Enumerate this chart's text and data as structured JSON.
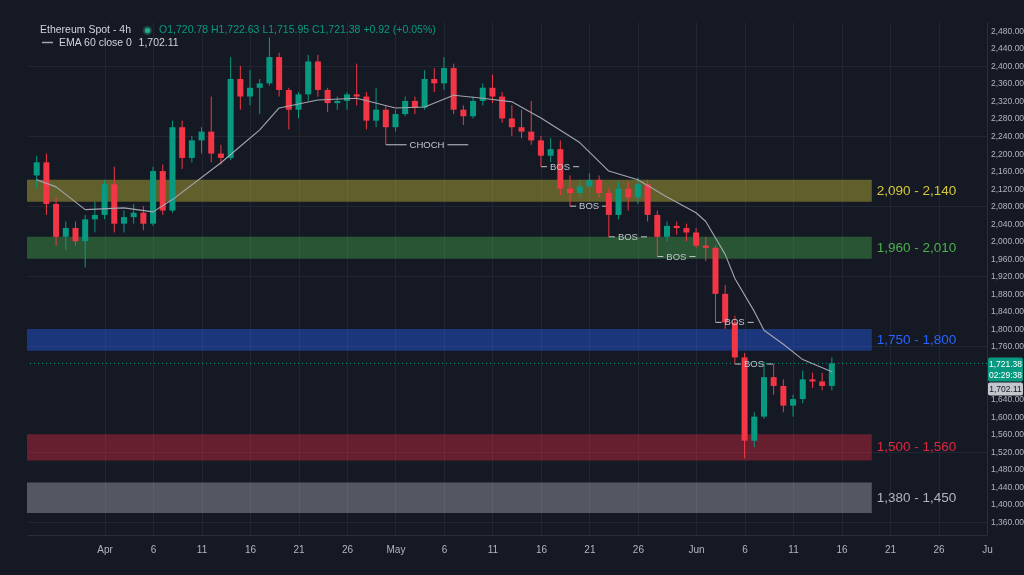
{
  "chart_data": {
    "type": "candlestick",
    "title": "Ethereum Spot - 4h",
    "x": [
      "--03-25",
      "--03-26",
      "--03-27",
      "--03-28",
      "--03-29",
      "--03-30",
      "--03-31",
      "--04-01",
      "--04-02",
      "--04-03",
      "--04-04",
      "--04-05",
      "--04-06",
      "--04-07",
      "--04-08",
      "--04-09",
      "--04-10",
      "--04-11",
      "--04-12",
      "--04-13",
      "--04-14",
      "--04-15",
      "--04-16",
      "--04-17",
      "--04-18",
      "--04-19",
      "--04-20",
      "--04-21",
      "--04-22",
      "--04-23",
      "--04-24",
      "--04-25",
      "--04-26",
      "--04-27",
      "--04-28",
      "--04-29",
      "--04-30",
      "--05-01",
      "--05-02",
      "--05-03",
      "--05-04",
      "--05-05",
      "--05-06",
      "--05-07",
      "--05-08",
      "--05-09",
      "--05-10",
      "--05-11",
      "--05-12",
      "--05-13",
      "--05-14",
      "--05-15",
      "--05-16",
      "--05-17",
      "--05-18",
      "--05-19",
      "--05-20",
      "--05-21",
      "--05-22",
      "--05-23",
      "--05-24",
      "--05-25",
      "--05-26",
      "--05-27",
      "--05-28",
      "--05-29",
      "--05-30",
      "--05-31",
      "--06-01",
      "--06-02",
      "--06-03",
      "--06-04",
      "--06-05",
      "--06-06",
      "--06-07",
      "--06-08",
      "--06-09",
      "--06-10",
      "--06-11",
      "--06-12",
      "--06-13",
      "--06-14",
      "--06-15"
    ],
    "ohlc": [
      [
        2150,
        2195,
        2120,
        2180
      ],
      [
        2180,
        2200,
        2060,
        2085
      ],
      [
        2085,
        2100,
        1990,
        2010
      ],
      [
        2010,
        2045,
        1980,
        2030
      ],
      [
        2030,
        2045,
        1990,
        2000
      ],
      [
        2000,
        2060,
        1940,
        2050
      ],
      [
        2050,
        2090,
        2020,
        2060
      ],
      [
        2060,
        2140,
        2050,
        2130
      ],
      [
        2130,
        2170,
        2020,
        2040
      ],
      [
        2040,
        2070,
        2020,
        2055
      ],
      [
        2055,
        2085,
        2040,
        2065
      ],
      [
        2065,
        2080,
        2025,
        2040
      ],
      [
        2040,
        2170,
        2035,
        2160
      ],
      [
        2160,
        2175,
        2060,
        2070
      ],
      [
        2070,
        2275,
        2065,
        2260
      ],
      [
        2260,
        2275,
        2165,
        2190
      ],
      [
        2190,
        2240,
        2180,
        2230
      ],
      [
        2230,
        2260,
        2200,
        2250
      ],
      [
        2250,
        2330,
        2180,
        2200
      ],
      [
        2200,
        2220,
        2175,
        2190
      ],
      [
        2190,
        2420,
        2185,
        2370
      ],
      [
        2370,
        2400,
        2300,
        2330
      ],
      [
        2330,
        2390,
        2310,
        2350
      ],
      [
        2350,
        2370,
        2290,
        2360
      ],
      [
        2360,
        2465,
        2355,
        2420
      ],
      [
        2420,
        2430,
        2330,
        2345
      ],
      [
        2345,
        2350,
        2255,
        2300
      ],
      [
        2300,
        2340,
        2280,
        2335
      ],
      [
        2335,
        2425,
        2320,
        2410
      ],
      [
        2410,
        2425,
        2330,
        2345
      ],
      [
        2345,
        2350,
        2295,
        2315
      ],
      [
        2315,
        2330,
        2300,
        2320
      ],
      [
        2320,
        2340,
        2300,
        2335
      ],
      [
        2335,
        2405,
        2310,
        2330
      ],
      [
        2330,
        2340,
        2255,
        2275
      ],
      [
        2275,
        2350,
        2260,
        2300
      ],
      [
        2300,
        2310,
        2220,
        2260
      ],
      [
        2260,
        2300,
        2250,
        2290
      ],
      [
        2290,
        2330,
        2285,
        2320
      ],
      [
        2320,
        2330,
        2290,
        2305
      ],
      [
        2305,
        2390,
        2300,
        2370
      ],
      [
        2370,
        2395,
        2340,
        2360
      ],
      [
        2360,
        2420,
        2345,
        2395
      ],
      [
        2395,
        2405,
        2290,
        2300
      ],
      [
        2300,
        2310,
        2265,
        2285
      ],
      [
        2285,
        2330,
        2280,
        2320
      ],
      [
        2320,
        2360,
        2310,
        2350
      ],
      [
        2350,
        2380,
        2315,
        2330
      ],
      [
        2330,
        2340,
        2270,
        2280
      ],
      [
        2280,
        2310,
        2240,
        2260
      ],
      [
        2260,
        2300,
        2235,
        2250
      ],
      [
        2250,
        2320,
        2220,
        2230
      ],
      [
        2230,
        2240,
        2170,
        2195
      ],
      [
        2195,
        2235,
        2180,
        2210
      ],
      [
        2210,
        2230,
        2105,
        2120
      ],
      [
        2120,
        2150,
        2080,
        2110
      ],
      [
        2110,
        2140,
        2100,
        2125
      ],
      [
        2125,
        2155,
        2110,
        2140
      ],
      [
        2140,
        2150,
        2100,
        2110
      ],
      [
        2110,
        2120,
        2010,
        2060
      ],
      [
        2060,
        2135,
        2050,
        2120
      ],
      [
        2120,
        2135,
        2070,
        2100
      ],
      [
        2100,
        2145,
        2085,
        2130
      ],
      [
        2130,
        2140,
        2045,
        2060
      ],
      [
        2060,
        2070,
        1965,
        2010
      ],
      [
        2010,
        2045,
        2000,
        2035
      ],
      [
        2035,
        2045,
        2015,
        2030
      ],
      [
        2030,
        2040,
        2000,
        2020
      ],
      [
        2020,
        2030,
        1985,
        1990
      ],
      [
        1990,
        2010,
        1955,
        1985
      ],
      [
        1985,
        1990,
        1815,
        1880
      ],
      [
        1880,
        1900,
        1800,
        1815
      ],
      [
        1815,
        1830,
        1720,
        1735
      ],
      [
        1735,
        1745,
        1505,
        1545
      ],
      [
        1545,
        1610,
        1530,
        1600
      ],
      [
        1600,
        1725,
        1595,
        1690
      ],
      [
        1690,
        1720,
        1650,
        1670
      ],
      [
        1670,
        1685,
        1610,
        1625
      ],
      [
        1625,
        1650,
        1600,
        1640
      ],
      [
        1640,
        1705,
        1630,
        1685
      ],
      [
        1685,
        1700,
        1665,
        1680
      ],
      [
        1680,
        1700,
        1660,
        1670
      ],
      [
        1670,
        1735,
        1660,
        1721.38
      ]
    ],
    "colors": [
      "#089981",
      "#f23645",
      "#f23645",
      "#089981",
      "#f23645",
      "#089981",
      "#089981",
      "#089981",
      "#f23645",
      "#089981",
      "#089981",
      "#f23645",
      "#089981",
      "#f23645",
      "#089981",
      "#f23645",
      "#089981",
      "#089981",
      "#f23645",
      "#f23645",
      "#089981",
      "#f23645",
      "#089981",
      "#089981",
      "#089981",
      "#f23645",
      "#f23645",
      "#089981",
      "#089981",
      "#f23645",
      "#f23645",
      "#089981",
      "#089981",
      "#f23645",
      "#f23645",
      "#089981",
      "#f23645",
      "#089981",
      "#089981",
      "#f23645",
      "#089981",
      "#f23645",
      "#089981",
      "#f23645",
      "#f23645",
      "#089981",
      "#089981",
      "#f23645",
      "#f23645",
      "#f23645",
      "#f23645",
      "#f23645",
      "#f23645",
      "#089981",
      "#f23645",
      "#f23645",
      "#089981",
      "#089981",
      "#f23645",
      "#f23645",
      "#089981",
      "#f23645",
      "#089981",
      "#f23645",
      "#f23645",
      "#089981",
      "#f23645",
      "#f23645",
      "#f23645",
      "#f23645",
      "#f23645",
      "#f23645",
      "#f23645",
      "#f23645",
      "#089981",
      "#089981",
      "#f23645",
      "#f23645",
      "#089981",
      "#089981",
      "#f23645",
      "#f23645",
      "#089981"
    ],
    "series": [
      {
        "name": "EMA 60 close 0",
        "type": "line",
        "color": "#a3a6af",
        "x": [
          "--03-25",
          "--03-27",
          "--03-30",
          "--04-03",
          "--04-06",
          "--04-08",
          "--04-13",
          "--04-17",
          "--04-19",
          "--04-23",
          "--04-27",
          "--05-01",
          "--05-04",
          "--05-07",
          "--05-10",
          "--05-13",
          "--05-16",
          "--05-20",
          "--05-23",
          "--05-26",
          "--05-29",
          "--06-01",
          "--06-02",
          "--06-04",
          "--06-05",
          "--06-07",
          "--06-08",
          "--06-10",
          "--06-12",
          "--06-15"
        ],
        "values": [
          2140,
          2124,
          2072,
          2076,
          2067,
          2095,
          2179,
          2254,
          2304,
          2322,
          2326,
          2304,
          2306,
          2333,
          2326,
          2318,
          2281,
          2225,
          2160,
          2140,
          2101,
          2065,
          2045,
          1970,
          1915,
          1840,
          1797,
          1765,
          1730,
          1702.11
        ]
      }
    ],
    "xlim": [
      "--03-24",
      "--07-01"
    ],
    "xticks": [
      {
        "value": "--04-01",
        "label": "Apr"
      },
      {
        "value": "--04-06",
        "label": "6"
      },
      {
        "value": "--04-11",
        "label": "11"
      },
      {
        "value": "--04-16",
        "label": "16"
      },
      {
        "value": "--04-21",
        "label": "21"
      },
      {
        "value": "--04-26",
        "label": "26"
      },
      {
        "value": "--05-01",
        "label": "May"
      },
      {
        "value": "--05-06",
        "label": "6"
      },
      {
        "value": "--05-11",
        "label": "11"
      },
      {
        "value": "--05-16",
        "label": "16"
      },
      {
        "value": "--05-21",
        "label": "21"
      },
      {
        "value": "--05-26",
        "label": "26"
      },
      {
        "value": "--06-01",
        "label": "Jun"
      },
      {
        "value": "--06-06",
        "label": "6"
      },
      {
        "value": "--06-11",
        "label": "11"
      },
      {
        "value": "--06-16",
        "label": "16"
      },
      {
        "value": "--06-21",
        "label": "21"
      },
      {
        "value": "--06-26",
        "label": "26"
      },
      {
        "value": "--07-01",
        "label": "Ju"
      }
    ],
    "ylim": [
      1330,
      2500
    ],
    "yticks": [
      {
        "value": 1360,
        "label": "1,360.00"
      },
      {
        "value": 1400,
        "label": "1,400.00"
      },
      {
        "value": 1440,
        "label": "1,440.00"
      },
      {
        "value": 1480,
        "label": "1,480.00"
      },
      {
        "value": 1520,
        "label": "1,520.00"
      },
      {
        "value": 1560,
        "label": "1,560.00"
      },
      {
        "value": 1600,
        "label": "1,600.00"
      },
      {
        "value": 1640,
        "label": "1,640.00"
      },
      {
        "value": 1760,
        "label": "1,760.00"
      },
      {
        "value": 1800,
        "label": "1,800.00"
      },
      {
        "value": 1840,
        "label": "1,840.00"
      },
      {
        "value": 1880,
        "label": "1,880.00"
      },
      {
        "value": 1920,
        "label": "1,920.00"
      },
      {
        "value": 1960,
        "label": "1,960.00"
      },
      {
        "value": 2000,
        "label": "2,000.00"
      },
      {
        "value": 2040,
        "label": "2,040.00"
      },
      {
        "value": 2080,
        "label": "2,080.00"
      },
      {
        "value": 2120,
        "label": "2,120.00"
      },
      {
        "value": 2160,
        "label": "2,160.00"
      },
      {
        "value": 2200,
        "label": "2,200.00"
      },
      {
        "value": 2240,
        "label": "2,240.00"
      },
      {
        "value": 2280,
        "label": "2,280.00"
      },
      {
        "value": 2320,
        "label": "2,320.00"
      },
      {
        "value": 2360,
        "label": "2,360.00"
      },
      {
        "value": 2400,
        "label": "2,400.00"
      },
      {
        "value": 2440,
        "label": "2,440.00"
      },
      {
        "value": 2480,
        "label": "2,480.00"
      }
    ],
    "bands": [
      {
        "axis": "y",
        "from": 2090,
        "to": 2140,
        "label": "2,090 - 2,140",
        "color": "#d4c83a"
      },
      {
        "axis": "y",
        "from": 1960,
        "to": 2010,
        "label": "1,960 - 2,010",
        "color": "#4caf50"
      },
      {
        "axis": "y",
        "from": 1750,
        "to": 1800,
        "label": "1,750 - 1,800",
        "color": "#2962ff"
      },
      {
        "axis": "y",
        "from": 1500,
        "to": 1560,
        "label": "1,500 - 1,560",
        "color": "#e0283f"
      },
      {
        "axis": "y",
        "from": 1380,
        "to": 1450,
        "label": "1,380 - 1,450",
        "color": "#b2b5be"
      }
    ],
    "ref_lines": [
      {
        "axis": "y",
        "value": 1721.38,
        "label": "1,721.38",
        "color": "#089981",
        "line_style": "dotted"
      }
    ],
    "annotations": [
      "O1,720.78 H1,722.63 L1,715.95 C1,721.38 +0.92 (+0.05%)",
      "1,702.11",
      "02:29:38",
      "1,702.11",
      {
        "text": "CHOCH",
        "x": "--04-30",
        "y": 2220
      },
      {
        "text": "BOS",
        "x": "--05-16",
        "y": 2170
      },
      {
        "text": "BOS",
        "x": "--05-19",
        "y": 2080
      },
      {
        "text": "BOS",
        "x": "--05-23",
        "y": 2010
      },
      {
        "text": "BOS",
        "x": "--05-28",
        "y": 1965
      },
      {
        "text": "BOS",
        "x": "--06-03",
        "y": 1815
      },
      {
        "text": "BOS",
        "x": "--06-05",
        "y": 1720
      }
    ],
    "grid": true,
    "legend": "top left"
  }
}
